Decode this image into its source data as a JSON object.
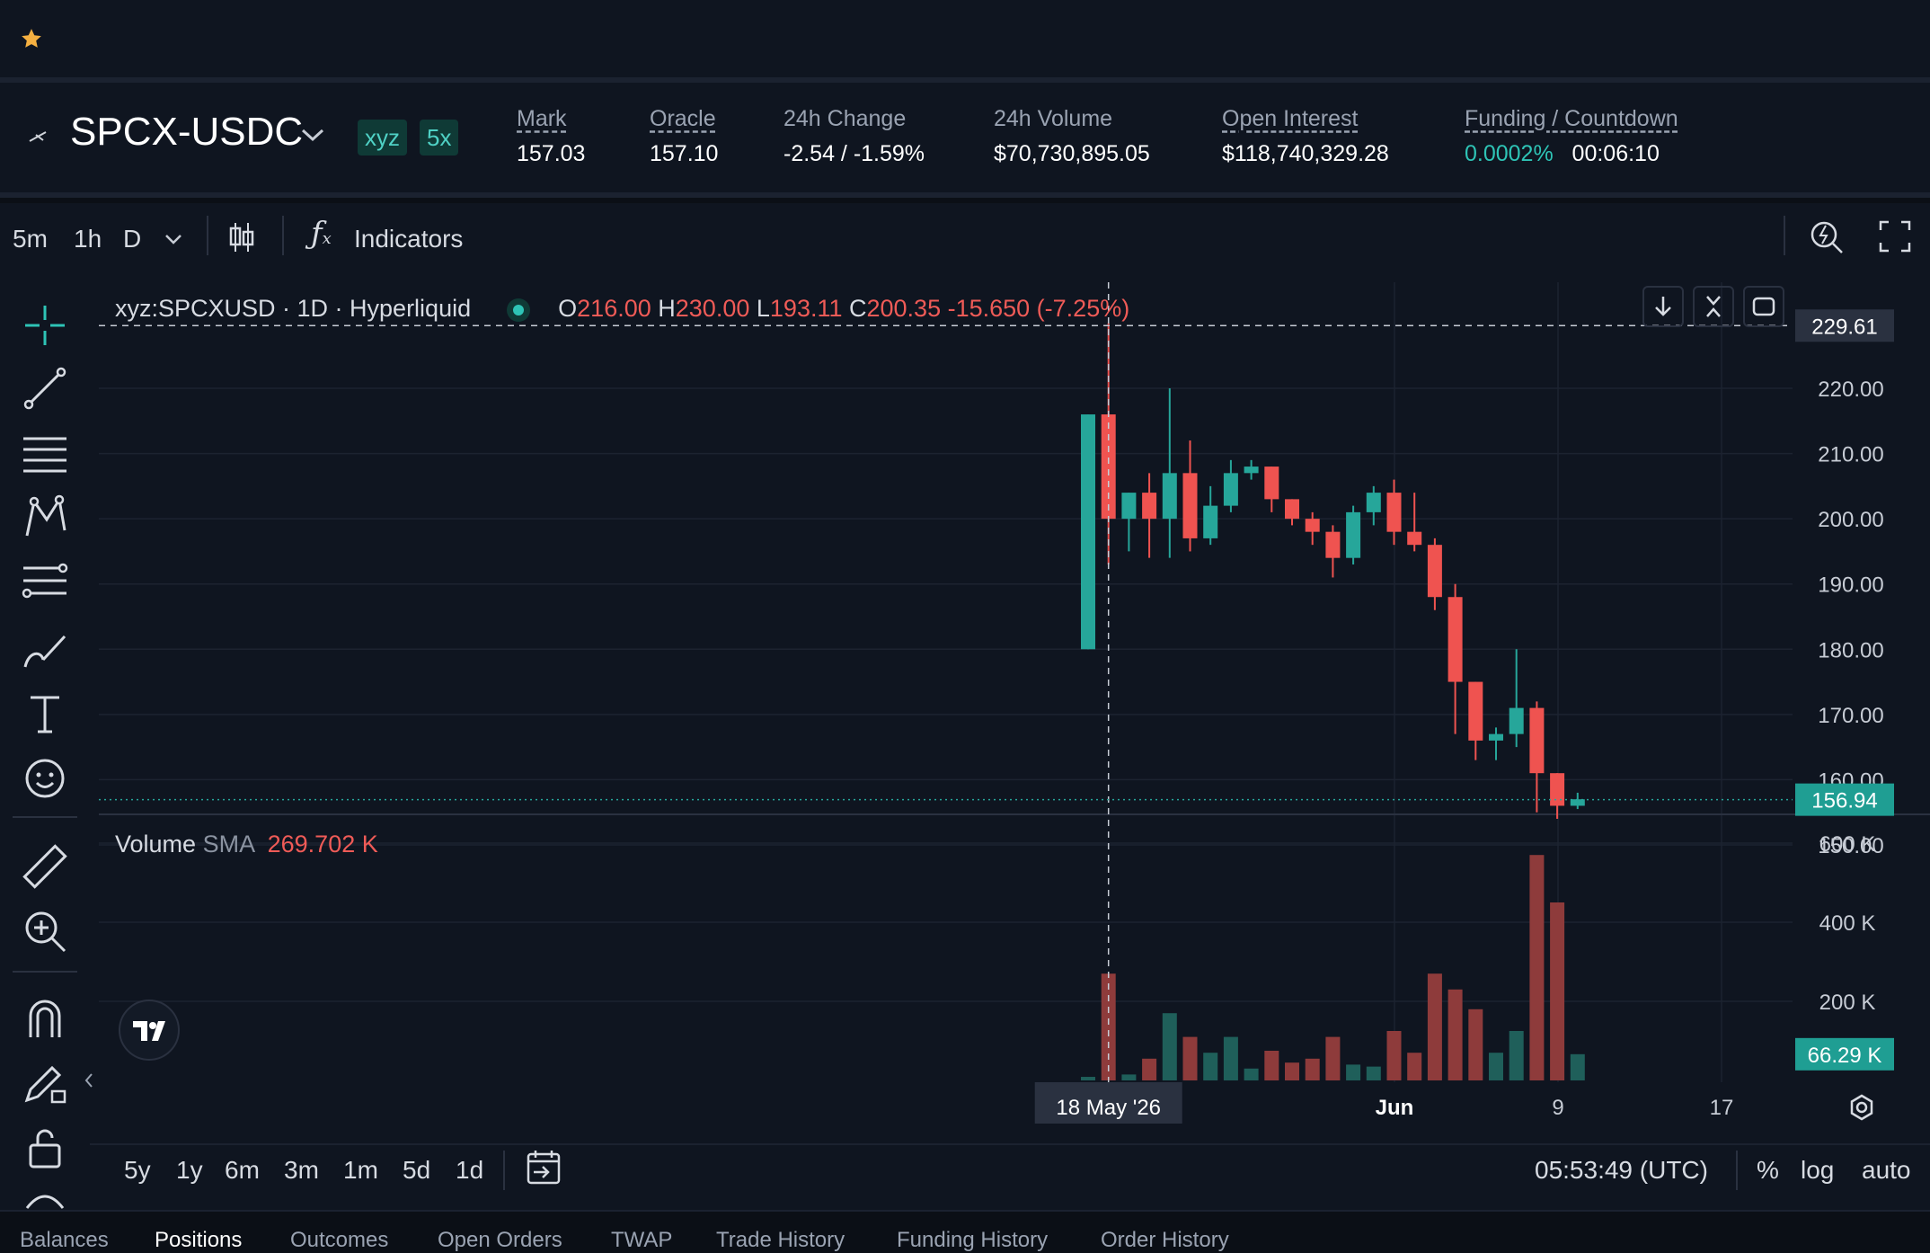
{
  "header": {
    "favorite_icon": "star-icon"
  },
  "market": {
    "symbol": "SPCX-USDC",
    "dex_badge": "xyz",
    "leverage_badge": "5x",
    "stats": [
      {
        "label": "Mark",
        "value": "157.03"
      },
      {
        "label": "Oracle",
        "value": "157.10"
      },
      {
        "label": "24h Change",
        "value": "-2.54 / -1.59%"
      },
      {
        "label": "24h Volume",
        "value": "$70,730,895.05"
      },
      {
        "label": "Open Interest",
        "value": "$118,740,329.28"
      },
      {
        "label": "Funding / Countdown",
        "value": "0.0002%",
        "value2": "00:06:10"
      }
    ]
  },
  "toolbar": {
    "intervals": [
      "5m",
      "1h",
      "D"
    ],
    "active_interval": "D",
    "indicators_label": "Indicators"
  },
  "legend": {
    "title": "xyz:SPCXUSD · 1D · Hyperliquid",
    "o_label": "O",
    "o": "216.00",
    "h_label": "H",
    "h": "230.00",
    "l_label": "L",
    "l": "193.11",
    "c_label": "C",
    "c": "200.35",
    "change": "-15.650 (-7.25%)"
  },
  "volume_legend": {
    "label": "Volume",
    "sma_label": "SMA",
    "sma_value": "269.702 K"
  },
  "price_axis": [
    "220.00",
    "210.00",
    "200.00",
    "190.00",
    "180.00",
    "170.00",
    "160.00",
    "150.00"
  ],
  "crosshair_price": "229.61",
  "last_price": "156.94",
  "volume_axis": [
    "600 K",
    "400 K",
    "200 K"
  ],
  "last_volume": "66.29 K",
  "time_axis": [
    "Jun",
    "9",
    "17"
  ],
  "crosshair_time": "18 May '26",
  "ranges": [
    "5y",
    "1y",
    "6m",
    "3m",
    "1m",
    "5d",
    "1d"
  ],
  "clock": "05:53:49 (UTC)",
  "scale_buttons": [
    "%",
    "log",
    "auto"
  ],
  "bottom_tabs": [
    "Balances",
    "Positions",
    "Outcomes",
    "Open Orders",
    "TWAP",
    "Trade History",
    "Funding History",
    "Order History"
  ],
  "colors": {
    "up": "#26a69a",
    "down": "#ef5350",
    "accent": "#2ec4b6"
  },
  "chart_data": {
    "type": "candlestick",
    "interval": "1D",
    "ylim": [
      145,
      234
    ],
    "candles": [
      {
        "o": 180,
        "h": 216,
        "l": 180,
        "c": 216,
        "v": 9
      },
      {
        "o": 216,
        "h": 230,
        "l": 193,
        "c": 200,
        "v": 270
      },
      {
        "o": 200,
        "h": 204,
        "l": 195,
        "c": 204,
        "v": 15
      },
      {
        "o": 204,
        "h": 207,
        "l": 194,
        "c": 200,
        "v": 55
      },
      {
        "o": 200,
        "h": 220,
        "l": 194,
        "c": 207,
        "v": 170
      },
      {
        "o": 207,
        "h": 212,
        "l": 195,
        "c": 197,
        "v": 110
      },
      {
        "o": 197,
        "h": 205,
        "l": 196,
        "c": 202,
        "v": 70
      },
      {
        "o": 202,
        "h": 209,
        "l": 201,
        "c": 207,
        "v": 110
      },
      {
        "o": 207,
        "h": 209,
        "l": 206,
        "c": 208,
        "v": 30
      },
      {
        "o": 208,
        "h": 208,
        "l": 201,
        "c": 203,
        "v": 75
      },
      {
        "o": 203,
        "h": 203,
        "l": 199,
        "c": 200,
        "v": 45
      },
      {
        "o": 200,
        "h": 201,
        "l": 196,
        "c": 198,
        "v": 55
      },
      {
        "o": 198,
        "h": 199,
        "l": 191,
        "c": 194,
        "v": 110
      },
      {
        "o": 194,
        "h": 202,
        "l": 193,
        "c": 201,
        "v": 40
      },
      {
        "o": 201,
        "h": 205,
        "l": 199,
        "c": 204,
        "v": 35
      },
      {
        "o": 204,
        "h": 206,
        "l": 196,
        "c": 198,
        "v": 125
      },
      {
        "o": 198,
        "h": 204,
        "l": 195,
        "c": 196,
        "v": 70
      },
      {
        "o": 196,
        "h": 197,
        "l": 186,
        "c": 188,
        "v": 270
      },
      {
        "o": 188,
        "h": 190,
        "l": 167,
        "c": 175,
        "v": 230
      },
      {
        "o": 175,
        "h": 175,
        "l": 163,
        "c": 166,
        "v": 180
      },
      {
        "o": 166,
        "h": 168,
        "l": 163,
        "c": 167,
        "v": 70
      },
      {
        "o": 167,
        "h": 180,
        "l": 165,
        "c": 171,
        "v": 125
      },
      {
        "o": 171,
        "h": 172,
        "l": 155,
        "c": 161,
        "v": 570
      },
      {
        "o": 161,
        "h": 161,
        "l": 154,
        "c": 156,
        "v": 450
      },
      {
        "o": 156,
        "h": 158,
        "l": 155.5,
        "c": 157,
        "v": 66.29
      }
    ],
    "volume_unit": "K",
    "volume_sma": 269.702
  }
}
